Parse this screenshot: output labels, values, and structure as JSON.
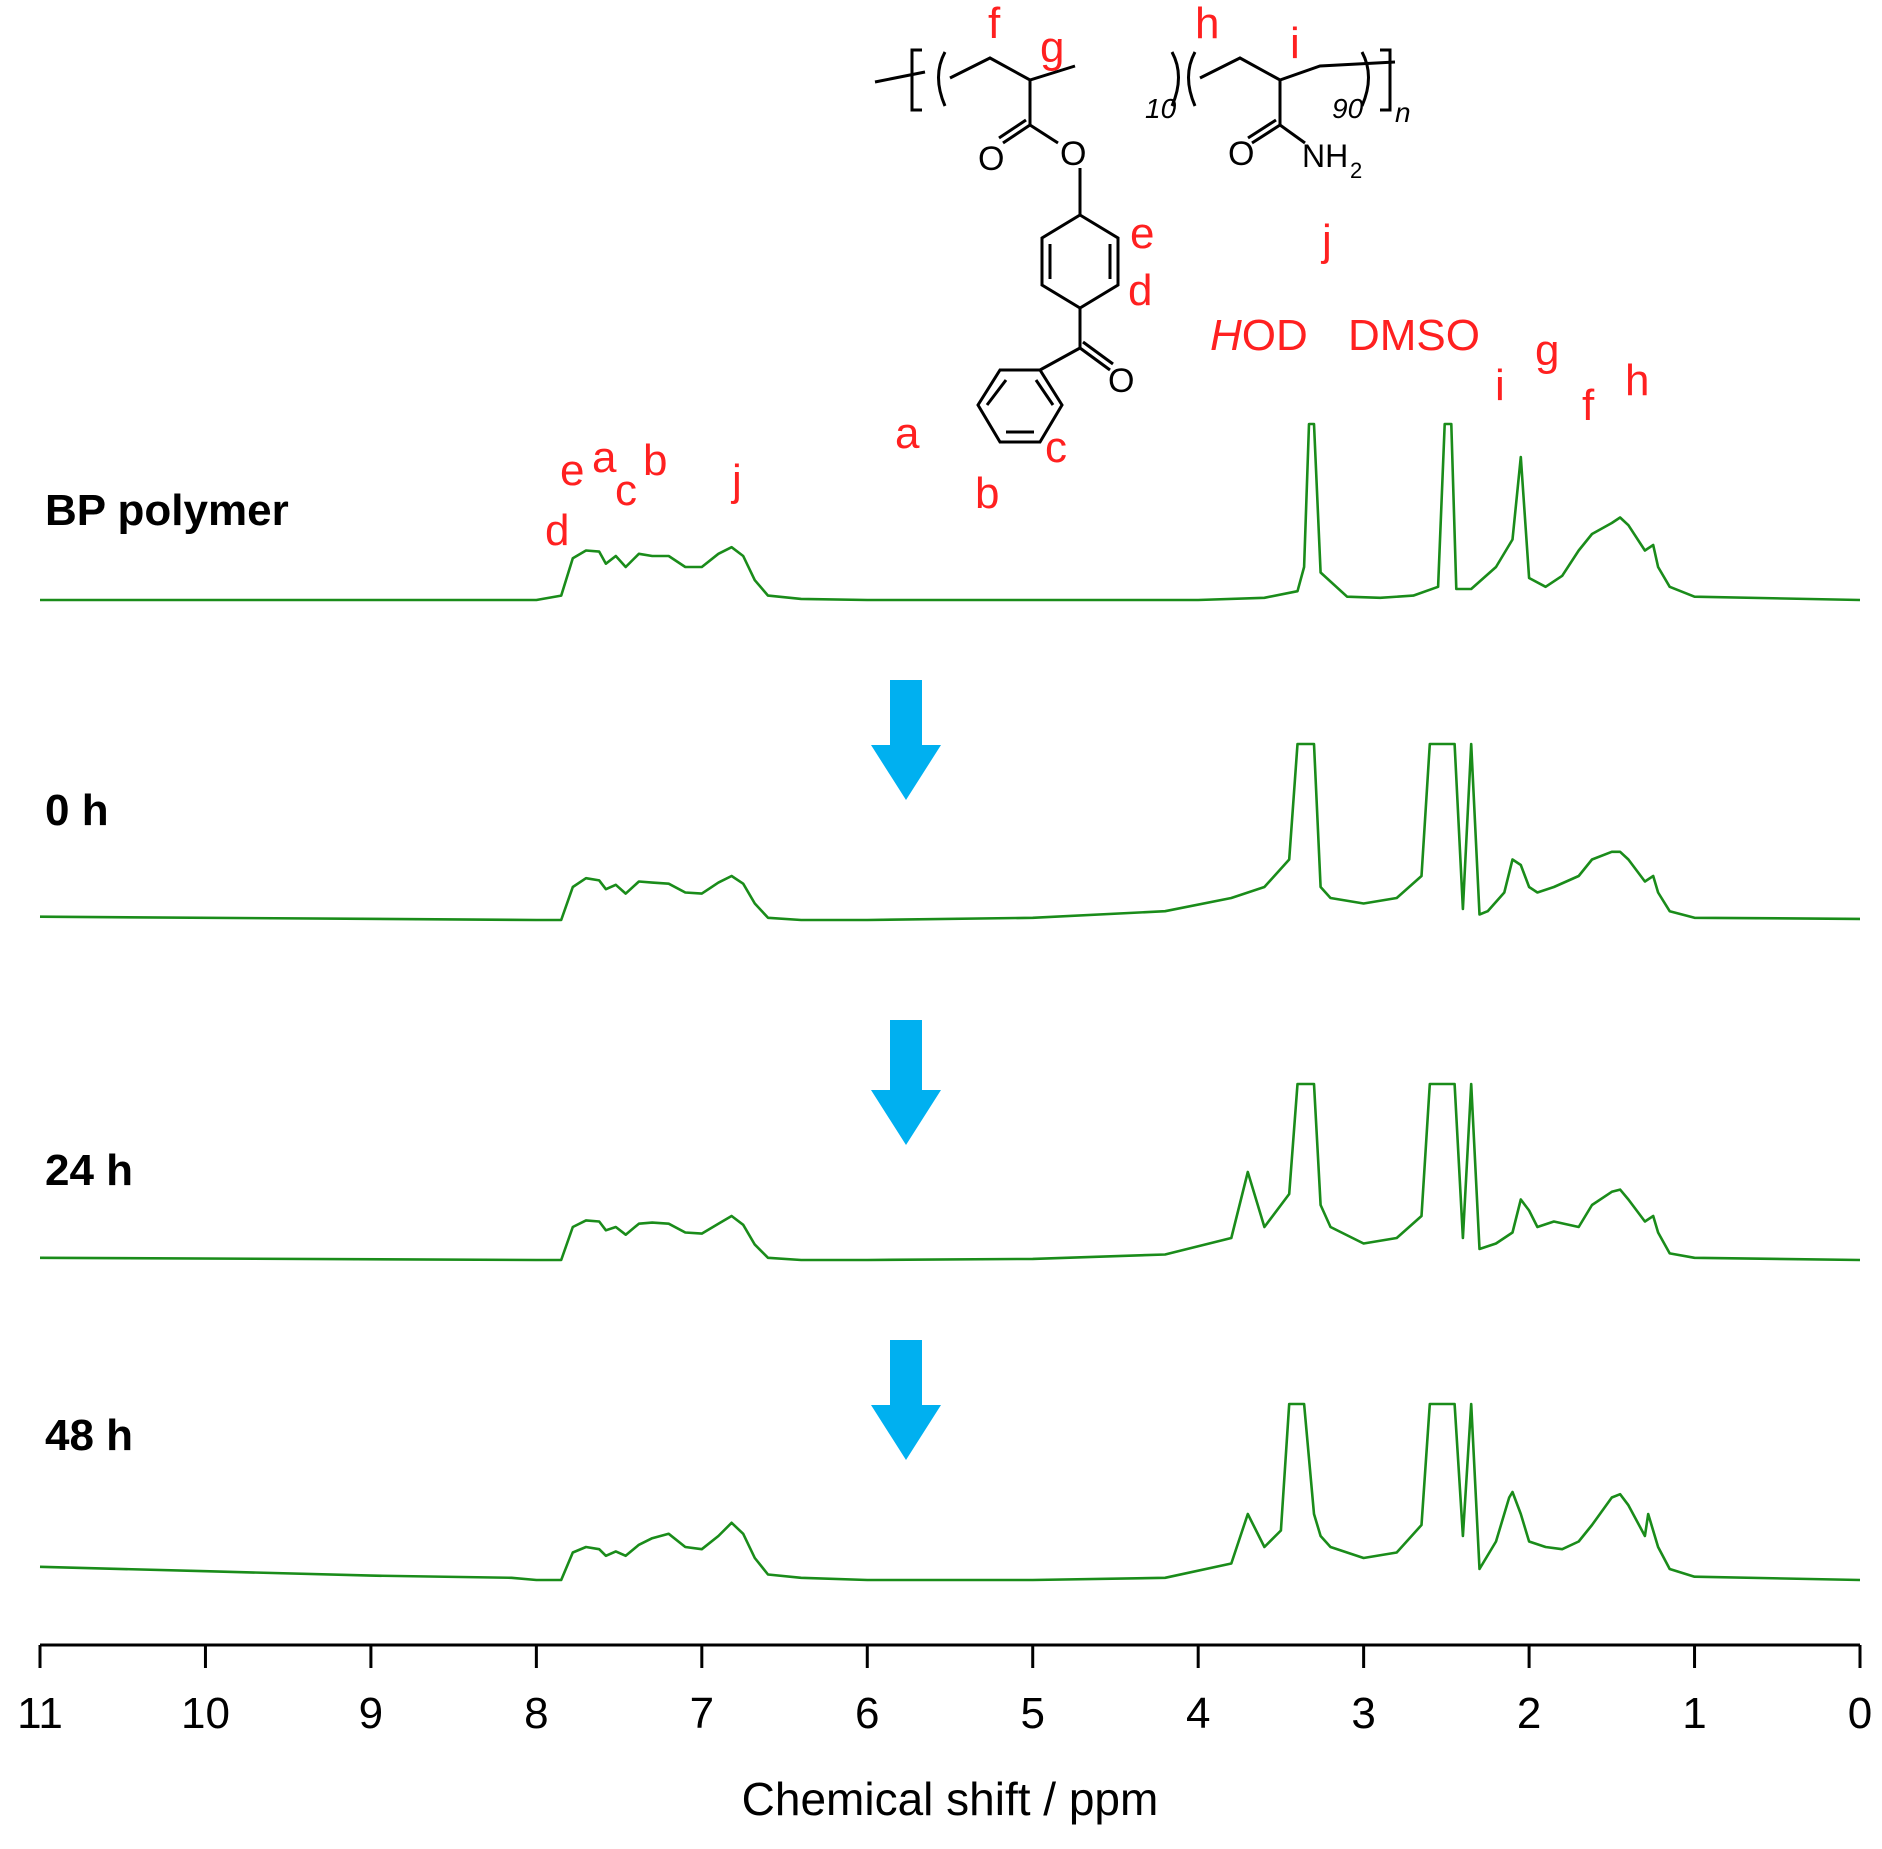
{
  "chart_data": {
    "type": "line",
    "title": "",
    "xlabel": "Chemical shift / ppm",
    "ylabel": "",
    "xlim": [
      11,
      0
    ],
    "x_reversed": true,
    "xticks": [
      11,
      10,
      9,
      8,
      7,
      6,
      5,
      4,
      3,
      2,
      1,
      0
    ],
    "grid": false,
    "line_color": "#1a8c1a",
    "arrow_color": "#00b0f0",
    "label_color": "#ff2020",
    "series": [
      {
        "name": "BP polymer",
        "x": [
          11.0,
          8.0,
          7.85,
          7.78,
          7.7,
          7.62,
          7.58,
          7.52,
          7.46,
          7.38,
          7.3,
          7.2,
          7.1,
          7.0,
          6.9,
          6.82,
          6.75,
          6.68,
          6.6,
          6.4,
          6.0,
          4.0,
          3.6,
          3.4,
          3.36,
          3.33,
          3.3,
          3.26,
          3.1,
          2.9,
          2.7,
          2.55,
          2.51,
          2.49,
          2.47,
          2.44,
          2.35,
          2.2,
          2.1,
          2.05,
          2.0,
          1.9,
          1.8,
          1.7,
          1.62,
          1.5,
          1.45,
          1.4,
          1.3,
          1.25,
          1.22,
          1.15,
          1.0,
          0.0
        ],
        "y": [
          0,
          0,
          0.04,
          0.38,
          0.45,
          0.44,
          0.33,
          0.4,
          0.3,
          0.42,
          0.4,
          0.4,
          0.3,
          0.3,
          0.42,
          0.48,
          0.4,
          0.18,
          0.04,
          0.01,
          0,
          0,
          0.02,
          0.08,
          0.3,
          1.6,
          1.6,
          0.25,
          0.03,
          0.02,
          0.04,
          0.12,
          1.6,
          1.6,
          1.6,
          0.1,
          0.1,
          0.3,
          0.55,
          1.3,
          0.2,
          0.12,
          0.22,
          0.45,
          0.6,
          0.7,
          0.75,
          0.68,
          0.45,
          0.5,
          0.3,
          0.12,
          0.03,
          0
        ]
      },
      {
        "name": "0 h",
        "x": [
          11.0,
          8.0,
          7.85,
          7.78,
          7.7,
          7.62,
          7.58,
          7.52,
          7.46,
          7.38,
          7.3,
          7.2,
          7.1,
          7.0,
          6.9,
          6.82,
          6.75,
          6.68,
          6.6,
          6.4,
          6.0,
          5.0,
          4.2,
          3.8,
          3.6,
          3.45,
          3.4,
          3.36,
          3.3,
          3.26,
          3.2,
          3.0,
          2.8,
          2.65,
          2.6,
          2.55,
          2.5,
          2.45,
          2.4,
          2.35,
          2.3,
          2.25,
          2.15,
          2.1,
          2.05,
          2.0,
          1.95,
          1.85,
          1.7,
          1.62,
          1.5,
          1.45,
          1.4,
          1.3,
          1.25,
          1.22,
          1.15,
          1.0,
          0.0
        ],
        "y": [
          0.03,
          0.0,
          0.0,
          0.3,
          0.38,
          0.36,
          0.28,
          0.32,
          0.24,
          0.35,
          0.34,
          0.33,
          0.25,
          0.24,
          0.34,
          0.4,
          0.33,
          0.15,
          0.02,
          0.0,
          0.0,
          0.02,
          0.08,
          0.2,
          0.3,
          0.55,
          1.6,
          1.6,
          1.6,
          0.3,
          0.2,
          0.15,
          0.2,
          0.4,
          1.6,
          1.6,
          1.6,
          1.6,
          0.1,
          1.6,
          0.05,
          0.08,
          0.25,
          0.55,
          0.5,
          0.3,
          0.25,
          0.3,
          0.4,
          0.55,
          0.62,
          0.62,
          0.55,
          0.35,
          0.4,
          0.25,
          0.08,
          0.02,
          0.01
        ]
      },
      {
        "name": "24 h",
        "x": [
          11.0,
          8.0,
          7.85,
          7.78,
          7.7,
          7.62,
          7.58,
          7.52,
          7.46,
          7.38,
          7.3,
          7.2,
          7.1,
          7.0,
          6.9,
          6.82,
          6.75,
          6.68,
          6.6,
          6.4,
          6.0,
          5.0,
          4.2,
          3.8,
          3.7,
          3.6,
          3.45,
          3.4,
          3.36,
          3.3,
          3.26,
          3.2,
          3.0,
          2.8,
          2.65,
          2.6,
          2.55,
          2.5,
          2.45,
          2.4,
          2.35,
          2.3,
          2.2,
          2.1,
          2.05,
          2.0,
          1.95,
          1.85,
          1.7,
          1.62,
          1.5,
          1.45,
          1.4,
          1.3,
          1.25,
          1.22,
          1.15,
          1.0,
          0.0
        ],
        "y": [
          0.02,
          0.0,
          0.0,
          0.3,
          0.36,
          0.35,
          0.27,
          0.3,
          0.23,
          0.33,
          0.34,
          0.33,
          0.25,
          0.24,
          0.33,
          0.4,
          0.32,
          0.14,
          0.02,
          0.0,
          0.0,
          0.01,
          0.05,
          0.2,
          0.8,
          0.3,
          0.6,
          1.6,
          1.6,
          1.6,
          0.5,
          0.3,
          0.15,
          0.2,
          0.4,
          1.6,
          1.6,
          1.6,
          1.6,
          0.2,
          1.6,
          0.1,
          0.15,
          0.25,
          0.55,
          0.45,
          0.3,
          0.35,
          0.3,
          0.5,
          0.62,
          0.64,
          0.55,
          0.35,
          0.4,
          0.25,
          0.06,
          0.02,
          0.0
        ]
      },
      {
        "name": "48 h",
        "x": [
          11.0,
          10.0,
          9.0,
          8.15,
          8.0,
          7.85,
          7.78,
          7.7,
          7.62,
          7.58,
          7.52,
          7.46,
          7.38,
          7.3,
          7.2,
          7.1,
          7.0,
          6.9,
          6.82,
          6.75,
          6.68,
          6.6,
          6.4,
          6.0,
          5.0,
          4.2,
          3.8,
          3.7,
          3.6,
          3.5,
          3.45,
          3.4,
          3.36,
          3.3,
          3.26,
          3.2,
          3.0,
          2.8,
          2.65,
          2.6,
          2.55,
          2.5,
          2.45,
          2.4,
          2.35,
          2.3,
          2.2,
          2.12,
          2.1,
          2.05,
          2.0,
          1.9,
          1.8,
          1.7,
          1.62,
          1.5,
          1.45,
          1.4,
          1.3,
          1.28,
          1.22,
          1.15,
          1.0,
          0.0
        ],
        "y": [
          0.12,
          0.08,
          0.04,
          0.02,
          0.0,
          0.0,
          0.25,
          0.3,
          0.28,
          0.22,
          0.26,
          0.22,
          0.32,
          0.38,
          0.42,
          0.3,
          0.28,
          0.4,
          0.52,
          0.42,
          0.2,
          0.05,
          0.02,
          0.0,
          0.0,
          0.02,
          0.15,
          0.6,
          0.3,
          0.45,
          1.6,
          1.6,
          1.6,
          0.6,
          0.4,
          0.3,
          0.2,
          0.25,
          0.5,
          1.6,
          1.6,
          1.6,
          1.6,
          0.4,
          1.6,
          0.1,
          0.35,
          0.75,
          0.8,
          0.6,
          0.35,
          0.3,
          0.28,
          0.35,
          0.5,
          0.75,
          0.78,
          0.68,
          0.4,
          0.6,
          0.3,
          0.1,
          0.03,
          0.0
        ]
      }
    ],
    "peak_labels": [
      {
        "text": "d",
        "x": 8.1,
        "series": "BP polymer"
      },
      {
        "text": "e",
        "x": 7.95,
        "series": "BP polymer"
      },
      {
        "text": "a",
        "x": 7.78,
        "series": "BP polymer"
      },
      {
        "text": "c",
        "x": 7.65,
        "series": "BP polymer"
      },
      {
        "text": "b",
        "x": 7.5,
        "series": "BP polymer"
      },
      {
        "text": "j",
        "x": 6.82,
        "series": "BP polymer"
      },
      {
        "text": "HOD",
        "x": 3.5,
        "series": "BP polymer"
      },
      {
        "text": "DMSO",
        "x": 2.55,
        "series": "BP polymer"
      },
      {
        "text": "g",
        "x": 1.95,
        "series": "BP polymer"
      },
      {
        "text": "i",
        "x": 2.2,
        "series": "BP polymer"
      },
      {
        "text": "f",
        "x": 1.65,
        "series": "BP polymer"
      },
      {
        "text": "h",
        "x": 1.4,
        "series": "BP polymer"
      }
    ],
    "annotations": {
      "structure_labels": [
        "f",
        "g",
        "h",
        "i",
        "e",
        "d",
        "j",
        "a",
        "c",
        "b"
      ],
      "subscripts": [
        "10",
        "90",
        "n"
      ],
      "groups": [
        "O",
        "O",
        "O",
        "NH",
        "2",
        "O"
      ]
    }
  }
}
